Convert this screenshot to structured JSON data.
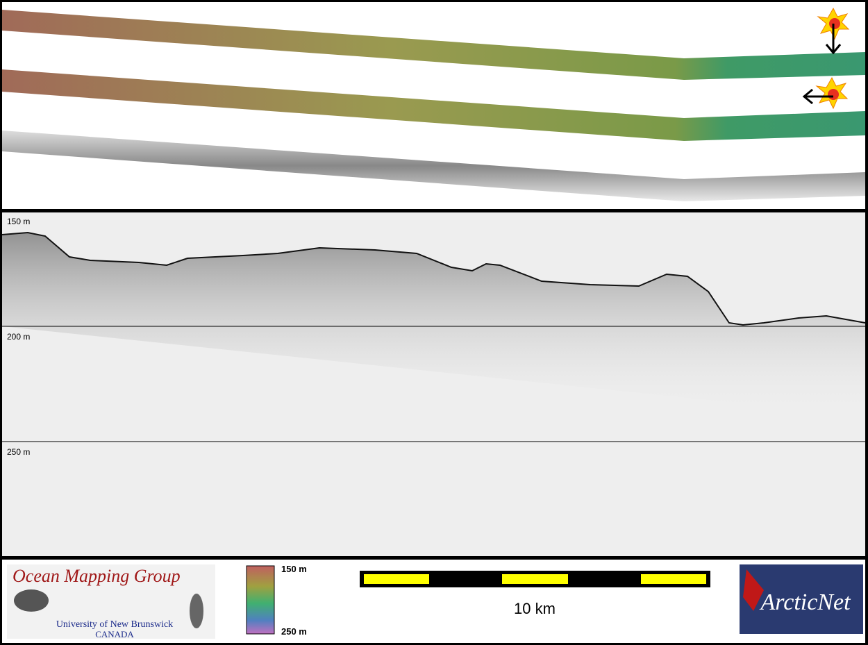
{
  "profile": {
    "depth_labels": [
      "150 m",
      "200 m",
      "250 m"
    ]
  },
  "legend": {
    "colorbar_top": "150 m",
    "colorbar_bottom": "250 m",
    "scale_bar": "10 km"
  },
  "logos": {
    "ocean_mapping": {
      "title": "Ocean Mapping Group",
      "university": "University of New Brunswick",
      "country": "CANADA"
    },
    "arcticnet": "ArcticNet"
  }
}
